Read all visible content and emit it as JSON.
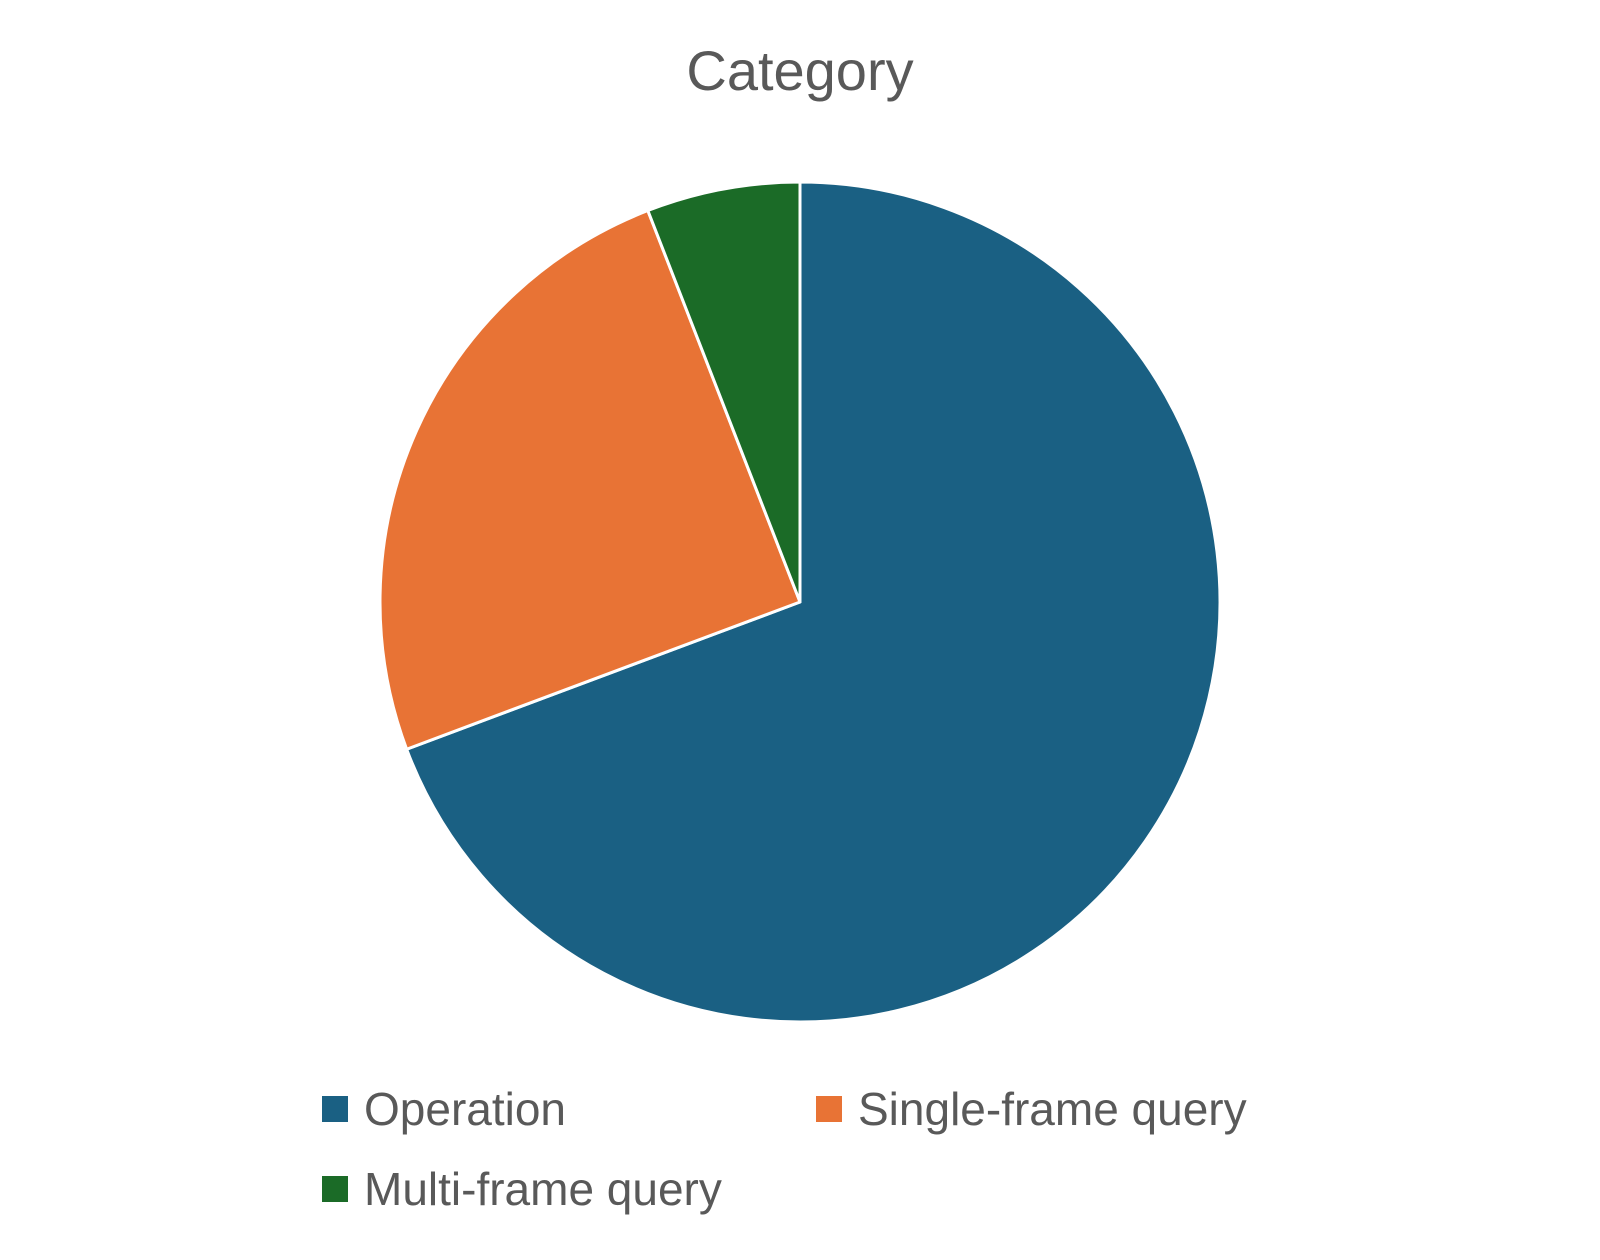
{
  "chart_data": {
    "type": "pie",
    "title": "Category",
    "legend_position": "bottom",
    "start_angle_deg": 0,
    "direction": "clockwise",
    "slices": [
      {
        "label": "Operation",
        "value": 69.3,
        "color": "#1a6083"
      },
      {
        "label": "Single-frame query",
        "value": 24.8,
        "color": "#e87335"
      },
      {
        "label": "Multi-frame query",
        "value": 5.9,
        "color": "#1b6b27"
      }
    ]
  }
}
